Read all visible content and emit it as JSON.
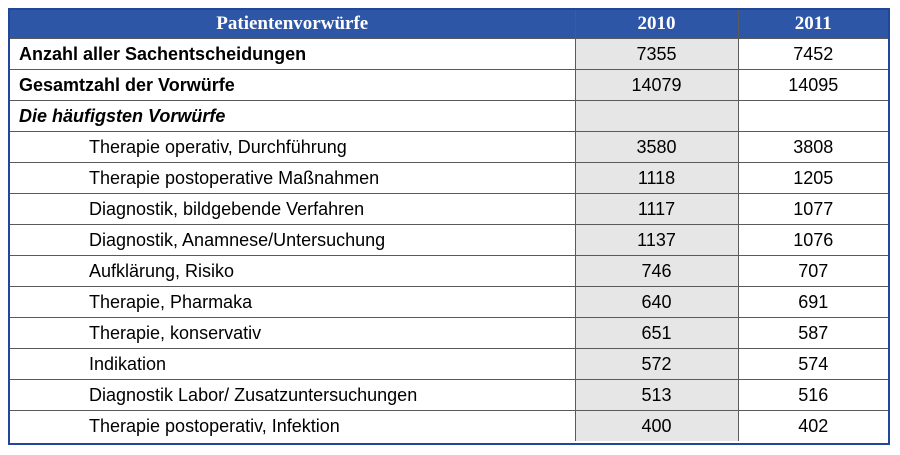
{
  "table": {
    "header": {
      "label": "Patientenvorwürfe",
      "year1": "2010",
      "year2": "2011"
    },
    "rows": [
      {
        "label": "Anzahl aller Sachentscheidungen",
        "v2010": "7355",
        "v2011": "7452"
      },
      {
        "label": "Gesamtzahl der Vorwürfe",
        "v2010": "14079",
        "v2011": "14095"
      },
      {
        "label": "Die häufigsten Vorwürfe",
        "v2010": "",
        "v2011": ""
      },
      {
        "label": "Therapie operativ, Durchführung",
        "v2010": "3580",
        "v2011": "3808"
      },
      {
        "label": "Therapie postoperative Maßnahmen",
        "v2010": "1118",
        "v2011": "1205"
      },
      {
        "label": "Diagnostik, bildgebende Verfahren",
        "v2010": "1117",
        "v2011": "1077"
      },
      {
        "label": "Diagnostik, Anamnese/Untersuchung",
        "v2010": "1137",
        "v2011": "1076"
      },
      {
        "label": "Aufklärung, Risiko",
        "v2010": "746",
        "v2011": "707"
      },
      {
        "label": "Therapie, Pharmaka",
        "v2010": "640",
        "v2011": "691"
      },
      {
        "label": "Therapie, konservativ",
        "v2010": "651",
        "v2011": "587"
      },
      {
        "label": "Indikation",
        "v2010": "572",
        "v2011": "574"
      },
      {
        "label": "Diagnostik Labor/ Zusatzuntersuchungen",
        "v2010": "513",
        "v2011": "516"
      },
      {
        "label": "Therapie postoperativ, Infektion",
        "v2010": "400",
        "v2011": "402"
      }
    ]
  },
  "colors": {
    "header_bg": "#2e56a6",
    "frame_border": "#22479a",
    "column_2010_bg": "#e6e6e6"
  }
}
